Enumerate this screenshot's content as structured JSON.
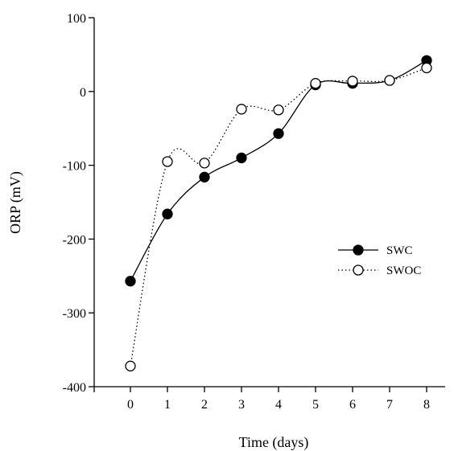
{
  "chart_data": {
    "type": "line",
    "title": "",
    "xlabel": "Time (days)",
    "ylabel": "ORP (mV)",
    "x": [
      0,
      1,
      2,
      3,
      4,
      5,
      6,
      7,
      8
    ],
    "xlim": [
      -1,
      8.5
    ],
    "ylim": [
      -400,
      100
    ],
    "xticks": [
      "0",
      "1",
      "2",
      "3",
      "4",
      "5",
      "6",
      "7",
      "8"
    ],
    "yticks": [
      100,
      0,
      -100,
      -200,
      -300,
      -400
    ],
    "ytick_labels": [
      "100",
      "0",
      "-100",
      "-200",
      "-300",
      "-400"
    ],
    "grid": false,
    "legend_position": "right-middle",
    "series": [
      {
        "name": "SWC",
        "values": [
          -257,
          -166,
          -116,
          -90,
          -57,
          9,
          11,
          15,
          42
        ],
        "marker": "filled-circle",
        "line_style": "solid",
        "color": "#000000"
      },
      {
        "name": "SWOC",
        "values": [
          -372,
          -95,
          -97,
          -24,
          -25,
          11,
          14,
          15,
          32
        ],
        "marker": "open-circle",
        "line_style": "dotted",
        "color": "#000000"
      }
    ]
  }
}
